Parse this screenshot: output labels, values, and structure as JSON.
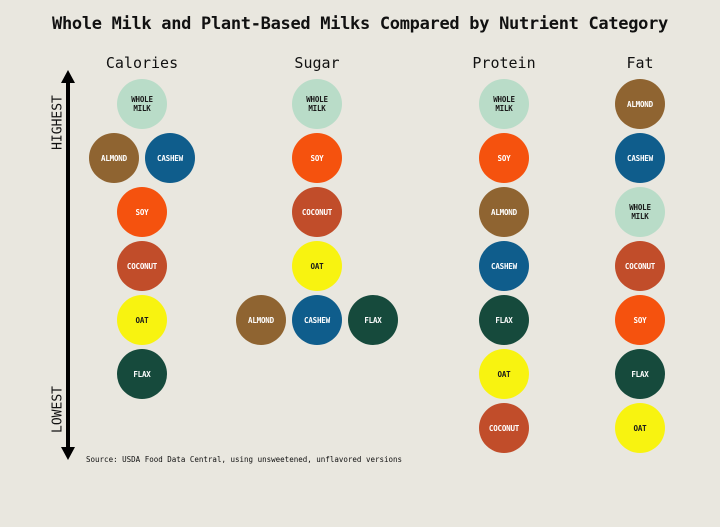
{
  "title": "Whole Milk and Plant-Based Milks Compared by Nutrient Category",
  "axis": {
    "highest": "HIGHEST",
    "lowest": "LOWEST"
  },
  "source": "Source: USDA Food Data Central, using unsweetened, unflavored versions",
  "colors": {
    "whole_milk": "#b9dcc8",
    "almond": "#8f6431",
    "cashew": "#0f5d8c",
    "soy": "#f5520e",
    "coconut": "#c14d2a",
    "oat": "#f8f310",
    "flax": "#164a3c"
  },
  "columns": [
    {
      "key": "calories",
      "label": "Calories",
      "ranks": [
        [
          "WHOLE\nMILK"
        ],
        [
          "ALMOND",
          "CASHEW"
        ],
        [
          "SOY"
        ],
        [
          "COCONUT"
        ],
        [
          "OAT"
        ],
        [
          "FLAX"
        ]
      ]
    },
    {
      "key": "sugar",
      "label": "Sugar",
      "ranks": [
        [
          "WHOLE\nMILK"
        ],
        [
          "SOY"
        ],
        [
          "COCONUT"
        ],
        [
          "OAT"
        ],
        [
          "ALMOND",
          "CASHEW",
          "FLAX"
        ]
      ]
    },
    {
      "key": "protein",
      "label": "Protein",
      "ranks": [
        [
          "WHOLE\nMILK"
        ],
        [
          "SOY"
        ],
        [
          "ALMOND"
        ],
        [
          "CASHEW"
        ],
        [
          "FLAX"
        ],
        [
          "OAT"
        ],
        [
          "COCONUT"
        ]
      ]
    },
    {
      "key": "fat",
      "label": "Fat",
      "ranks": [
        [
          "ALMOND"
        ],
        [
          "CASHEW"
        ],
        [
          "WHOLE\nMILK"
        ],
        [
          "COCONUT"
        ],
        [
          "SOY"
        ],
        [
          "FLAX"
        ],
        [
          "OAT"
        ]
      ]
    }
  ]
}
